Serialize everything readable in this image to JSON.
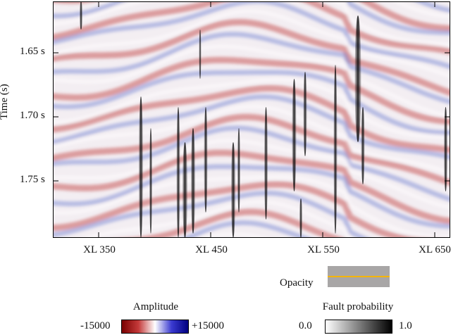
{
  "axes": {
    "y_title": "Time (s)",
    "y_ticks": [
      "1.65 s",
      "1.70 s",
      "1.75 s"
    ],
    "x_ticks": [
      "XL 350",
      "XL 450",
      "XL 550",
      "XL 650"
    ]
  },
  "legend": {
    "amplitude_title": "Amplitude",
    "amplitude_min": "-15000",
    "amplitude_max": "+15000",
    "amplitude_colors": [
      "#7a0000",
      "#c43a3a",
      "#ffffff",
      "#3a3ad0",
      "#000080"
    ],
    "fault_title": "Fault probability",
    "fault_min": "0.0",
    "fault_max": "1.0",
    "fault_colors": [
      "#ffffff",
      "#000000"
    ],
    "opacity_label": "Opacity",
    "opacity_line_color": "#f5b400"
  }
}
